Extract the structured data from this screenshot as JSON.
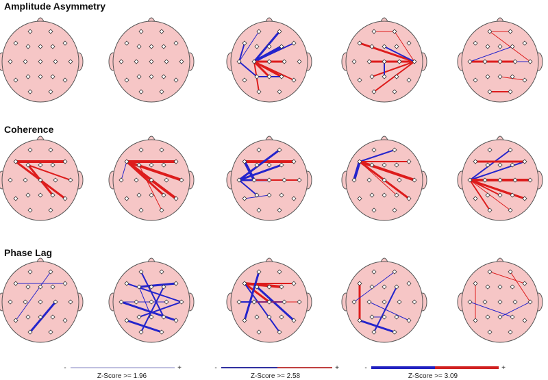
{
  "sections": [
    {
      "title": "Amplitude Asymmetry"
    },
    {
      "title": "Coherence"
    },
    {
      "title": "Phase Lag"
    }
  ],
  "legend": [
    {
      "minus": "-",
      "plus": "+",
      "label": "Z-Score >= 1.96"
    },
    {
      "minus": "-",
      "plus": "+",
      "label": "Z-Score >= 2.58"
    },
    {
      "minus": "-",
      "plus": "+",
      "label": "Z-Score >= 3.09"
    }
  ]
}
